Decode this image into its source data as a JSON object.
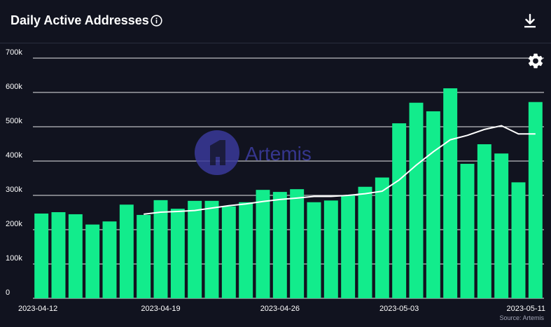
{
  "header": {
    "title": "Daily Active Addresses",
    "info_icon": "info-circle-icon",
    "download_icon": "download-icon"
  },
  "settings_icon": "gear-icon",
  "watermark": {
    "text": "Artemis"
  },
  "source": "Source: Artemis",
  "colors": {
    "background": "#11131f",
    "bar": "#12ec8c",
    "line": "#ffffff",
    "grid": "#ffffff",
    "watermark": "#3a3a9a"
  },
  "chart_data": {
    "type": "bar",
    "title": "Daily Active Addresses",
    "xlabel": "",
    "ylabel": "",
    "ylim": [
      0,
      700000
    ],
    "yticks": [
      0,
      100000,
      200000,
      300000,
      400000,
      500000,
      600000,
      700000
    ],
    "ytick_labels": [
      "0",
      "100k",
      "200k",
      "300k",
      "400k",
      "500k",
      "600k",
      "700k"
    ],
    "xtick_labels": [
      "2023-04-12",
      "2023-04-19",
      "2023-04-26",
      "2023-05-03",
      "2023-05-11"
    ],
    "grid": true,
    "categories": [
      "2023-04-12",
      "2023-04-13",
      "2023-04-14",
      "2023-04-15",
      "2023-04-16",
      "2023-04-17",
      "2023-04-18",
      "2023-04-19",
      "2023-04-20",
      "2023-04-21",
      "2023-04-22",
      "2023-04-23",
      "2023-04-24",
      "2023-04-25",
      "2023-04-26",
      "2023-04-27",
      "2023-04-28",
      "2023-04-29",
      "2023-04-30",
      "2023-05-01",
      "2023-05-02",
      "2023-05-03",
      "2023-05-04",
      "2023-05-05",
      "2023-05-06",
      "2023-05-07",
      "2023-05-08",
      "2023-05-09",
      "2023-05-10",
      "2023-05-11"
    ],
    "series": [
      {
        "type": "bar",
        "values": [
          247000,
          251000,
          245000,
          215000,
          224000,
          273000,
          243000,
          286000,
          261000,
          284000,
          284000,
          268000,
          280000,
          316000,
          310000,
          318000,
          280000,
          285000,
          300000,
          325000,
          352000,
          510000,
          570000,
          545000,
          612000,
          392000,
          449000,
          422000,
          338000,
          572000
        ]
      },
      {
        "type": "line",
        "values": [
          null,
          null,
          null,
          null,
          null,
          null,
          245000,
          251000,
          253000,
          256000,
          263000,
          270000,
          275000,
          282000,
          288000,
          292000,
          297000,
          297000,
          300000,
          305000,
          312000,
          345000,
          388000,
          427000,
          462000,
          475000,
          492000,
          503000,
          479000,
          479000
        ]
      }
    ]
  }
}
